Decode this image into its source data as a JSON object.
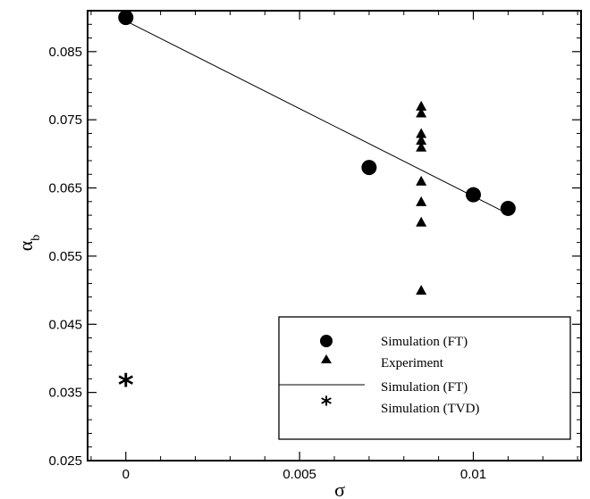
{
  "chart_data": {
    "type": "scatter",
    "title": "",
    "xlabel": "σ",
    "ylabel": "α",
    "ylabel_subscript": "b",
    "xlim": [
      -0.0011,
      0.0131
    ],
    "ylim": [
      0.025,
      0.091
    ],
    "xticks": [
      0,
      0.005,
      0.01
    ],
    "xtick_labels": [
      "0",
      "0.005",
      "0.01"
    ],
    "yticks": [
      0.025,
      0.035,
      0.045,
      0.055,
      0.065,
      0.075,
      0.085
    ],
    "ytick_labels": [
      "0.025",
      "0.035",
      "0.045",
      "0.055",
      "0.065",
      "0.075",
      "0.085"
    ],
    "grid": false,
    "legend_position": "bottom-right",
    "series": [
      {
        "name": "Simulation (FT)",
        "marker": "circle",
        "points": [
          [
            0,
            0.09
          ],
          [
            0.007,
            0.068
          ],
          [
            0.01,
            0.064
          ],
          [
            0.011,
            0.062
          ]
        ]
      },
      {
        "name": "Experiment",
        "marker": "triangle",
        "points": [
          [
            0.0085,
            0.077
          ],
          [
            0.0085,
            0.076
          ],
          [
            0.0085,
            0.073
          ],
          [
            0.0085,
            0.072
          ],
          [
            0.0085,
            0.071
          ],
          [
            0.0085,
            0.066
          ],
          [
            0.0085,
            0.063
          ],
          [
            0.0085,
            0.06
          ],
          [
            0.0085,
            0.05
          ]
        ]
      },
      {
        "name": "Simulation (FT)",
        "marker": "line",
        "points": [
          [
            0,
            0.0895
          ],
          [
            0.011,
            0.0612
          ]
        ]
      },
      {
        "name": "Simulation (TVD)",
        "marker": "asterisk",
        "points": [
          [
            0,
            0.0365
          ]
        ]
      }
    ]
  }
}
